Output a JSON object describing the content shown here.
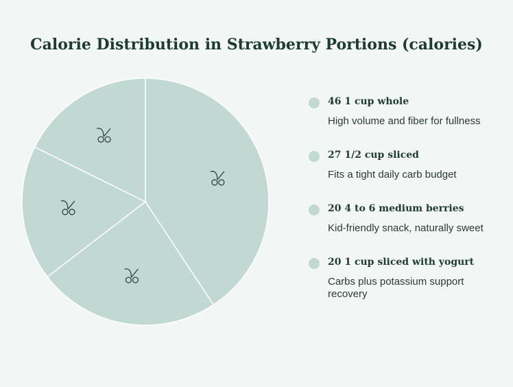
{
  "chart_data": {
    "type": "pie",
    "title": "Calorie Distribution in Strawberry Portions (calories)",
    "categories": [
      "1 cup whole",
      "1/2 cup sliced",
      "4 to 6 medium berries",
      "1 cup sliced with yogurt"
    ],
    "values": [
      46,
      27,
      20,
      20
    ],
    "descriptions": [
      "High volume and fiber for fullness",
      "Fits a tight daily carb budget",
      "Kid-friendly snack, naturally sweet",
      "Carbs plus potassium support recovery"
    ],
    "color": "#c2d8d3"
  }
}
